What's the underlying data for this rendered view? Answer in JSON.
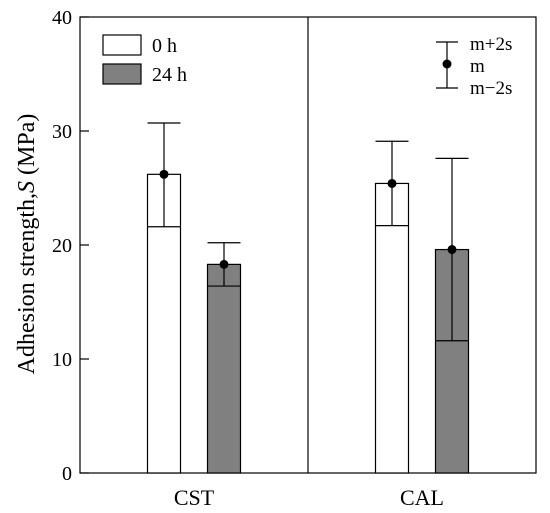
{
  "chart_data": {
    "type": "bar",
    "categories": [
      "CST",
      "CAL"
    ],
    "series": [
      {
        "name": "0 h",
        "mean": [
          26.2,
          25.4
        ],
        "upper": [
          30.7,
          29.1
        ],
        "lower": [
          21.6,
          21.7
        ]
      },
      {
        "name": "24 h",
        "mean": [
          18.3,
          19.6
        ],
        "upper": [
          20.2,
          27.6
        ],
        "lower": [
          16.4,
          11.6
        ]
      }
    ],
    "ylabel": "Adhesion strength,",
    "ylabel_symbol": "S",
    "ylabel_unit": " (MPa)",
    "ylim": [
      0,
      40
    ],
    "yticks": [
      "0",
      "10",
      "20",
      "30",
      "40"
    ],
    "key": {
      "upper": "m+2s",
      "mean": "m",
      "lower": "m−2s"
    },
    "legend_position": "top-left",
    "colors": {
      "series_0_fill": "#ffffff",
      "series_1_fill": "#808080",
      "stroke": "#000000"
    },
    "grid": false
  }
}
